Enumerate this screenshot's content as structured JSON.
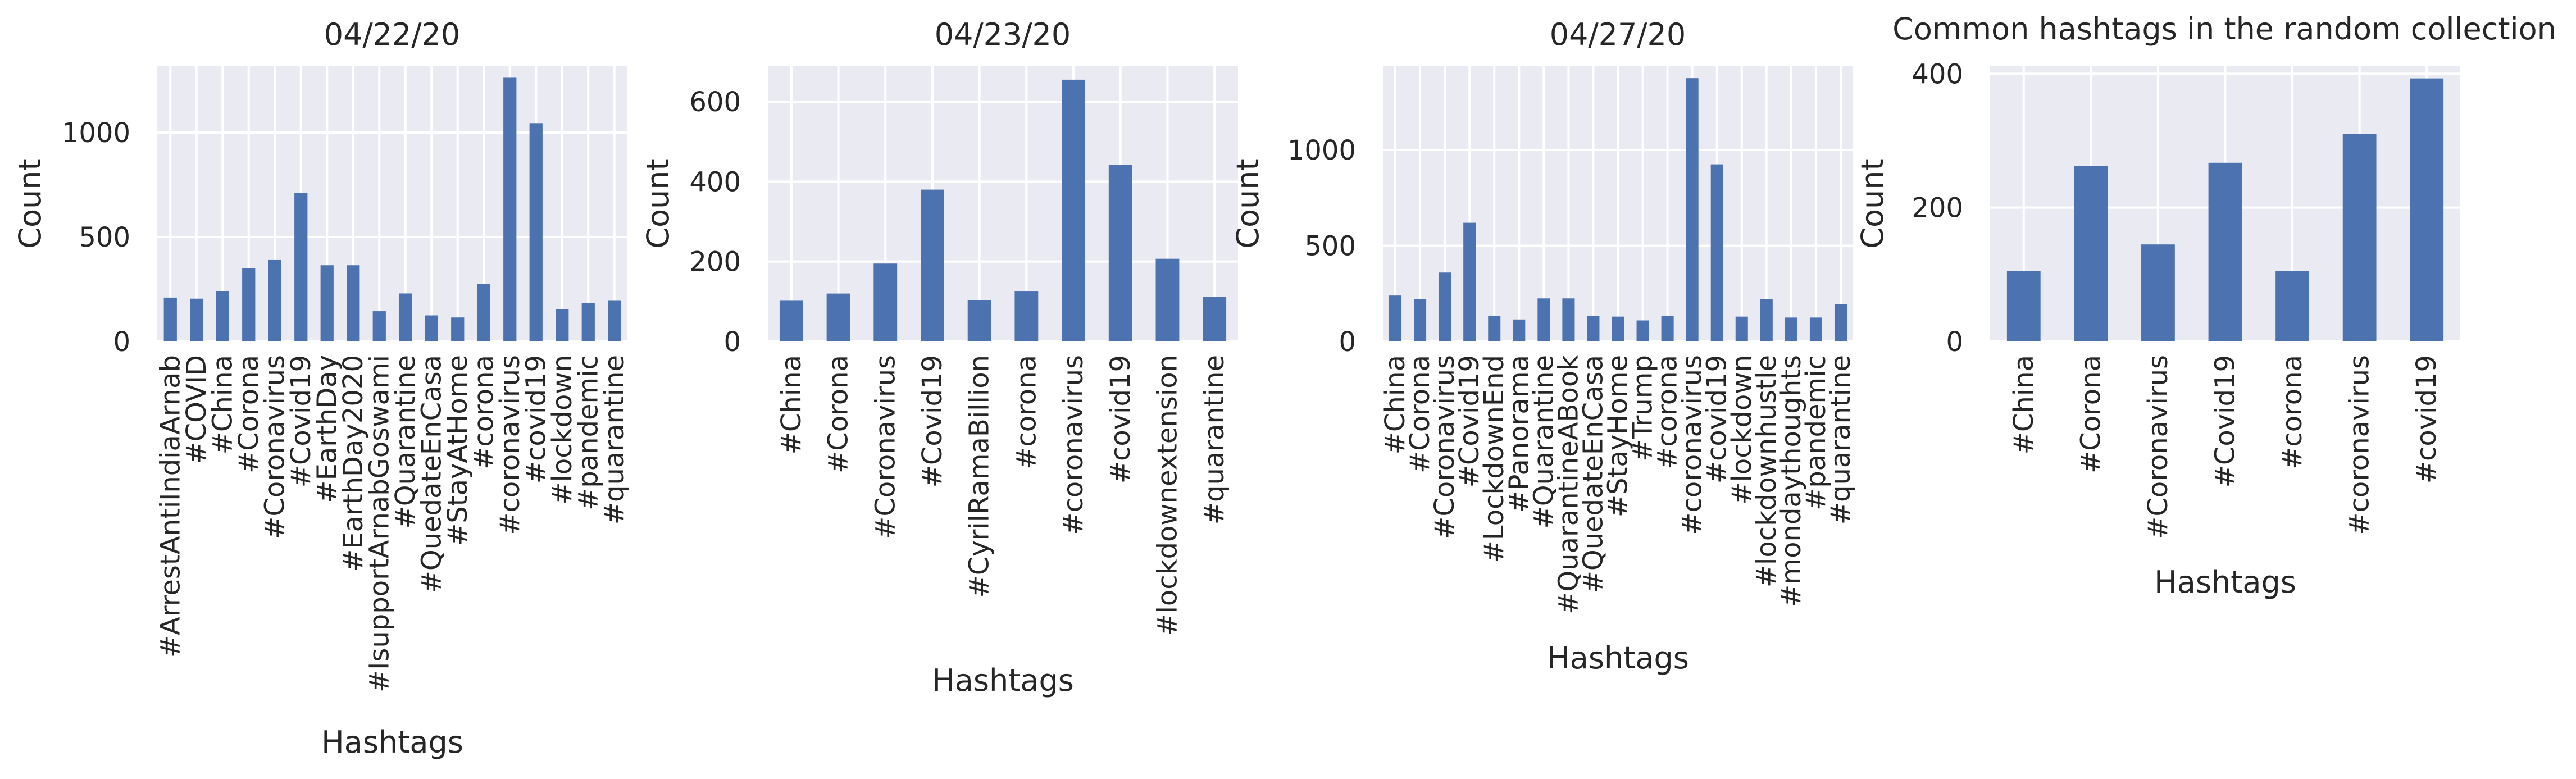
{
  "chart_data": [
    {
      "type": "bar",
      "title": "04/22/20",
      "xlabel": "Hashtags",
      "ylabel": "Count",
      "ylim": [
        0,
        1320
      ],
      "yticks": [
        0,
        500,
        1000
      ],
      "grid": true,
      "categories": [
        "#ArrestAntiIndiaArnab",
        "#COVID",
        "#China",
        "#Corona",
        "#Coronavirus",
        "#Covid19",
        "#EarthDay",
        "#EarthDay2020",
        "#IsupportArnabGoswami",
        "#Quarantine",
        "#QuedateEnCasa",
        "#StayAtHome",
        "#corona",
        "#coronavirus",
        "#covid19",
        "#lockdown",
        "#pandemic",
        "#quarantine"
      ],
      "values": [
        210,
        205,
        240,
        350,
        390,
        710,
        365,
        365,
        145,
        230,
        125,
        115,
        275,
        1265,
        1045,
        155,
        185,
        195
      ]
    },
    {
      "type": "bar",
      "title": "04/23/20",
      "xlabel": "Hashtags",
      "ylabel": "Count",
      "ylim": [
        0,
        690
      ],
      "yticks": [
        0,
        200,
        400,
        600
      ],
      "grid": true,
      "categories": [
        "#China",
        "#Corona",
        "#Coronavirus",
        "#Covid19",
        "#CyrilRamaBillion",
        "#corona",
        "#coronavirus",
        "#covid19",
        "#lockdownextension",
        "#quarantine"
      ],
      "values": [
        102,
        120,
        195,
        380,
        103,
        125,
        655,
        442,
        207,
        112
      ]
    },
    {
      "type": "bar",
      "title": "04/27/20",
      "xlabel": "Hashtags",
      "ylabel": "Count",
      "ylim": [
        0,
        1440
      ],
      "yticks": [
        0,
        500,
        1000
      ],
      "grid": true,
      "categories": [
        "#China",
        "#Corona",
        "#Coronavirus",
        "#Covid19",
        "#LockdownEnd",
        "#Panorama",
        "#Quarantine",
        "#QuarantineABook",
        "#QuedateEnCasa",
        "#StayHome",
        "#Trump",
        "#corona",
        "#coronavirus",
        "#covid19",
        "#lockdown",
        "#lockdownhustle",
        "#mondaythoughts",
        "#pandemic",
        "#quarantine"
      ],
      "values": [
        240,
        220,
        360,
        620,
        135,
        115,
        225,
        225,
        135,
        130,
        110,
        135,
        1375,
        925,
        130,
        220,
        125,
        125,
        195
      ]
    },
    {
      "type": "bar",
      "title": "Common hashtags in the random collection",
      "xlabel": "Hashtags",
      "ylabel": "Count",
      "ylim": [
        0,
        412
      ],
      "yticks": [
        0,
        200,
        400
      ],
      "grid": true,
      "categories": [
        "#China",
        "#Corona",
        "#Coronavirus",
        "#Covid19",
        "#corona",
        "#coronavirus",
        "#covid19"
      ],
      "values": [
        105,
        262,
        145,
        267,
        105,
        310,
        393
      ]
    }
  ]
}
